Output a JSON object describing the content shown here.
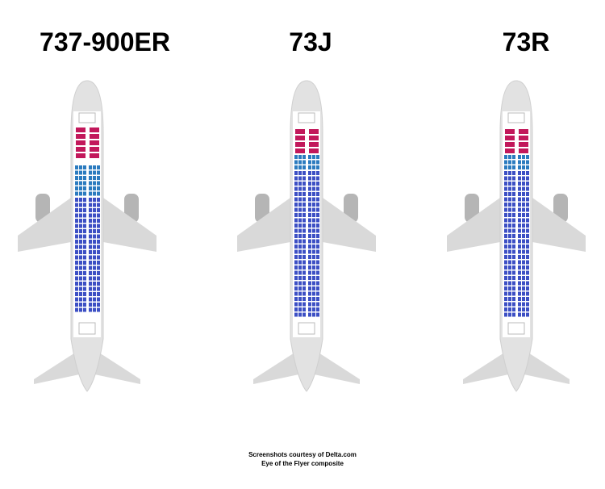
{
  "planes": [
    {
      "label": "737-900ER"
    },
    {
      "label": "73J"
    },
    {
      "label": "73R"
    }
  ],
  "caption": {
    "lines": [
      "Screenshots courtesy of Delta.com",
      "Eye of the Flyer composite"
    ]
  }
}
